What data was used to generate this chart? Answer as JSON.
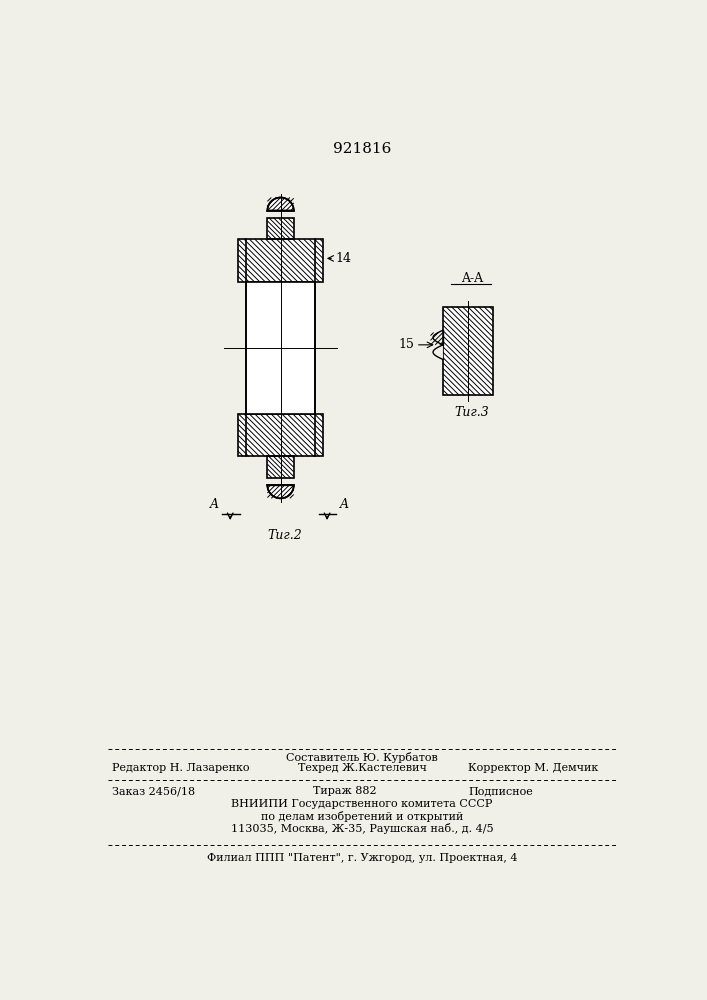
{
  "title": "921816",
  "bg_color": "#f0efe8",
  "fig2_label": "Τиг.2",
  "fig3_label": "Τиг.3",
  "section_label": "A-A",
  "label_14": "14",
  "label_15": "15",
  "label_A_left": "A",
  "label_A_right": "A",
  "footer_составитель": "Составитель Ю. Курбатов",
  "footer_редактор": "Редактор Н. Лазаренко",
  "footer_техред": "Техред Ж.Кастелевич",
  "footer_корректор": "Корректор М. Демчик",
  "footer_заказ": "Заказ 2456/18",
  "footer_тираж": "Тираж 882",
  "footer_подписное": "Подписное",
  "footer_вниипи": "ВНИИПИ Государственного комитета СССР",
  "footer_по_делам": "по делам изобретений и открытий",
  "footer_адрес": "113035, Москва, Ж-35, Раушская наб., д. 4/5",
  "footer_филиал": "Филиал ППП \"Патент\", г. Ужгород, ул. Проектная, 4"
}
